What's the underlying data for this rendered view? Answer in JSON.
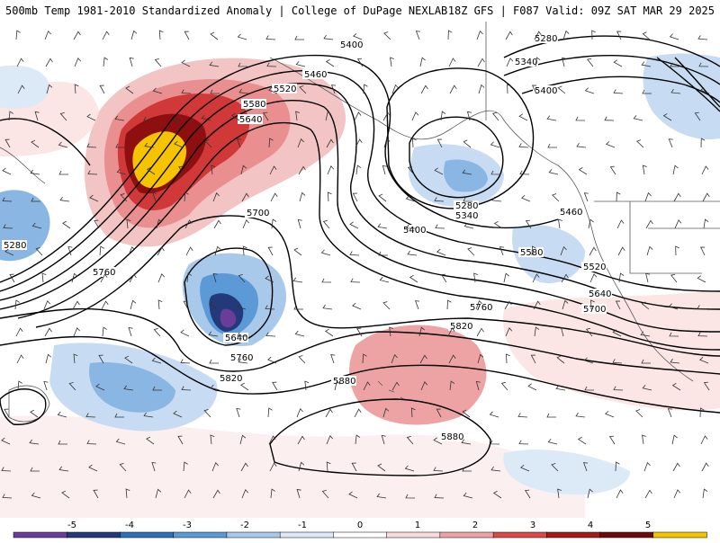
{
  "header": {
    "left_title": "500mb Temp 1981-2010 Standardized Anomaly | College of DuPage NEXLAB",
    "right_title": "18Z GFS | F087 Valid: 09Z SAT MAR 29 2025"
  },
  "map": {
    "height_contour_labels": [
      "5280",
      "5400",
      "5460",
      "5520",
      "5580",
      "5640",
      "5700",
      "5760",
      "5820",
      "5880",
      "5340"
    ],
    "labels": [
      {
        "text": "5400"
      },
      {
        "text": "5460"
      },
      {
        "text": "5520"
      },
      {
        "text": "5580"
      },
      {
        "text": "5640"
      },
      {
        "text": "5700"
      },
      {
        "text": "5760"
      },
      {
        "text": "5280"
      },
      {
        "text": "5640"
      },
      {
        "text": "5760"
      },
      {
        "text": "5820"
      },
      {
        "text": "5880"
      },
      {
        "text": "5880"
      },
      {
        "text": "5280"
      },
      {
        "text": "5340"
      },
      {
        "text": "5400"
      },
      {
        "text": "5280"
      },
      {
        "text": "5340"
      },
      {
        "text": "5400"
      },
      {
        "text": "5460"
      },
      {
        "text": "5520"
      },
      {
        "text": "5580"
      },
      {
        "text": "5640"
      },
      {
        "text": "5700"
      },
      {
        "text": "5760"
      },
      {
        "text": "5820"
      }
    ]
  },
  "colorbar": {
    "ticks": [
      "-5",
      "-4",
      "-3",
      "-2",
      "-1",
      "0",
      "1",
      "2",
      "3",
      "4",
      "5"
    ],
    "colors": [
      "#6a3d9a",
      "#23397a",
      "#2e6fb8",
      "#5b9ad6",
      "#a9c9ea",
      "#dce9f7",
      "#ffffff",
      "#f7dcdc",
      "#eda3a3",
      "#d84a4a",
      "#a01c1c",
      "#6e0a0a",
      "#f5c300"
    ]
  }
}
